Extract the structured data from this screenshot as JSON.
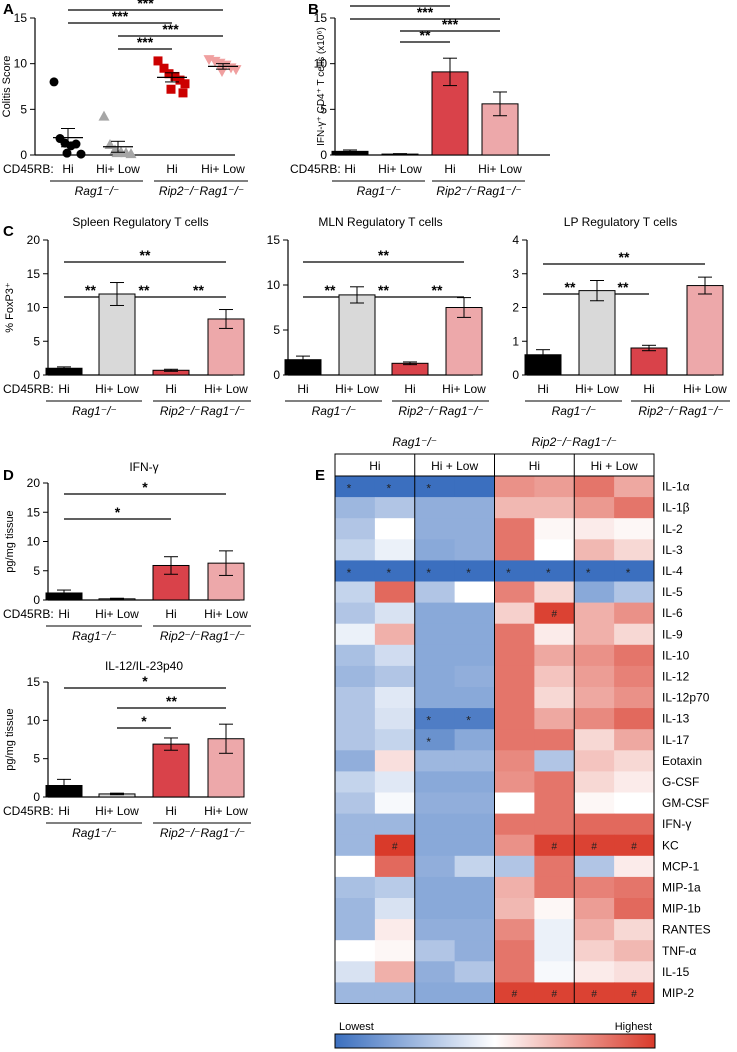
{
  "colors": {
    "black": "#000000",
    "gray": "#a6a6a6",
    "light_gray": "#d9d9d9",
    "red": "#d42a2a",
    "dark_red": "#cc0000",
    "pink": "#f0a0a0",
    "mid_red": "#d9424a",
    "light_pink": "#eda8aa",
    "blue_low": "#3b6fbf",
    "red_high": "#d93a2a"
  },
  "common": {
    "cd45rb": "CD45RB:",
    "hi": "Hi",
    "hi_low": "Hi+ Low",
    "rag1": "Rag1⁻/⁻",
    "rip2rag1": "Rip2⁻/⁻Rag1⁻/⁻",
    "sig3": "***",
    "sig2": "**",
    "sig1": "*"
  },
  "chart_data": [
    {
      "id": "A",
      "panel": "A",
      "type": "scatter",
      "ylabel": "Colitis Score",
      "ylim": [
        0,
        15
      ],
      "yticks": [
        "0",
        "5",
        "10",
        "15"
      ],
      "groups": [
        {
          "label": "Hi",
          "genotype": "Rag1",
          "mean": 1.9,
          "sem": 1.0,
          "color": "#000000",
          "marker": "circle",
          "points": [
            8.0,
            1.8,
            1.3,
            1.0,
            1.2,
            0.1,
            0.2
          ]
        },
        {
          "label": "Hi+ Low",
          "genotype": "Rag1",
          "mean": 0.9,
          "sem": 0.6,
          "color": "#a6a6a6",
          "marker": "triangle-up",
          "points": [
            4.2,
            1.1,
            0.5,
            0.3,
            0.2,
            0.1,
            0.2
          ]
        },
        {
          "label": "Hi",
          "genotype": "Rip2Rag1",
          "mean": 8.5,
          "sem": 0.5,
          "color": "#cc0000",
          "marker": "square",
          "points": [
            10.3,
            9.5,
            8.9,
            8.6,
            8.2,
            7.8,
            7.2,
            6.8
          ]
        },
        {
          "label": "Hi+ Low",
          "genotype": "Rip2Rag1",
          "mean": 9.7,
          "sem": 0.3,
          "color": "#f0a0a0",
          "marker": "triangle-down",
          "points": [
            10.5,
            10.3,
            10.1,
            9.9,
            9.6,
            9.4,
            9.2
          ]
        }
      ],
      "sig_bars": [
        {
          "from": 0,
          "to": 3,
          "label": "***"
        },
        {
          "from": 0,
          "to": 2,
          "label": "***"
        },
        {
          "from": 1,
          "to": 3,
          "label": "***"
        },
        {
          "from": 1,
          "to": 2,
          "label": "***"
        }
      ]
    },
    {
      "id": "B",
      "panel": "B",
      "type": "bar",
      "ylabel": "IFN-γ⁺ CD4⁺ T cells (x10⁶)",
      "ylim": [
        0,
        15
      ],
      "yticks": [
        "0",
        "5",
        "10",
        "15"
      ],
      "groups": [
        {
          "label": "Hi",
          "genotype": "Rag1",
          "value": 0.4,
          "err": 0.15,
          "color": "#000000"
        },
        {
          "label": "Hi+ Low",
          "genotype": "Rag1",
          "value": 0.1,
          "err": 0.05,
          "color": "#a6a6a6"
        },
        {
          "label": "Hi",
          "genotype": "Rip2Rag1",
          "value": 9.1,
          "err": 1.5,
          "color": "#d9424a"
        },
        {
          "label": "Hi+ Low",
          "genotype": "Rip2Rag1",
          "value": 5.6,
          "err": 1.3,
          "color": "#eda8aa"
        }
      ],
      "sig_bars": [
        {
          "from": 0,
          "to": 2,
          "label": "***"
        },
        {
          "from": 0,
          "to": 3,
          "label": "***"
        },
        {
          "from": 1,
          "to": 3,
          "label": "***"
        },
        {
          "from": 1,
          "to": 2,
          "label": "**"
        }
      ]
    },
    {
      "id": "C1",
      "panel": "C",
      "type": "bar",
      "title": "Spleen Regulatory T cells",
      "ylabel": "% FoxP3⁺",
      "ylim": [
        0,
        20
      ],
      "yticks": [
        "0",
        "5",
        "10",
        "15",
        "20"
      ],
      "groups": [
        {
          "label": "Hi",
          "genotype": "Rag1",
          "value": 1.0,
          "err": 0.2,
          "color": "#000000"
        },
        {
          "label": "Hi+ Low",
          "genotype": "Rag1",
          "value": 12.0,
          "err": 1.7,
          "color": "#d9d9d9"
        },
        {
          "label": "Hi",
          "genotype": "Rip2Rag1",
          "value": 0.7,
          "err": 0.15,
          "color": "#d9424a"
        },
        {
          "label": "Hi+ Low",
          "genotype": "Rip2Rag1",
          "value": 8.3,
          "err": 1.4,
          "color": "#eda8aa"
        }
      ],
      "sig_bars": [
        {
          "from": 0,
          "to": 3,
          "label": "**"
        },
        {
          "from": 0,
          "to": 1,
          "label": "**"
        },
        {
          "from": 1,
          "to": 2,
          "label": "**"
        },
        {
          "from": 2,
          "to": 3,
          "label": "**"
        }
      ]
    },
    {
      "id": "C2",
      "panel": "",
      "type": "bar",
      "title": "MLN Regulatory T cells",
      "ylabel": "",
      "ylim": [
        0,
        15
      ],
      "yticks": [
        "0",
        "5",
        "10",
        "15"
      ],
      "groups": [
        {
          "label": "Hi",
          "genotype": "Rag1",
          "value": 1.7,
          "err": 0.4,
          "color": "#000000"
        },
        {
          "label": "Hi+ Low",
          "genotype": "Rag1",
          "value": 8.9,
          "err": 0.9,
          "color": "#d9d9d9"
        },
        {
          "label": "Hi",
          "genotype": "Rip2Rag1",
          "value": 1.3,
          "err": 0.15,
          "color": "#d9424a"
        },
        {
          "label": "Hi+ Low",
          "genotype": "Rip2Rag1",
          "value": 7.5,
          "err": 1.1,
          "color": "#eda8aa"
        }
      ],
      "sig_bars": [
        {
          "from": 0,
          "to": 3,
          "label": "**"
        },
        {
          "from": 0,
          "to": 1,
          "label": "**"
        },
        {
          "from": 1,
          "to": 2,
          "label": "**"
        },
        {
          "from": 2,
          "to": 3,
          "label": "**"
        }
      ]
    },
    {
      "id": "C3",
      "panel": "",
      "type": "bar",
      "title": "LP Regulatory T cells",
      "ylabel": "",
      "ylim": [
        0,
        4
      ],
      "yticks": [
        "0",
        "1",
        "2",
        "3",
        "4"
      ],
      "groups": [
        {
          "label": "Hi",
          "genotype": "Rag1",
          "value": 0.6,
          "err": 0.15,
          "color": "#000000"
        },
        {
          "label": "Hi+ Low",
          "genotype": "Rag1",
          "value": 2.5,
          "err": 0.3,
          "color": "#d9d9d9"
        },
        {
          "label": "Hi",
          "genotype": "Rip2Rag1",
          "value": 0.8,
          "err": 0.08,
          "color": "#d9424a"
        },
        {
          "label": "Hi+ Low",
          "genotype": "Rip2Rag1",
          "value": 2.65,
          "err": 0.25,
          "color": "#eda8aa"
        }
      ],
      "sig_bars": [
        {
          "from": 0,
          "to": 3,
          "label": "**"
        },
        {
          "from": 0,
          "to": 1,
          "label": "**"
        },
        {
          "from": 1,
          "to": 2,
          "label": "**"
        }
      ]
    },
    {
      "id": "D1",
      "panel": "D",
      "type": "bar",
      "title": "IFN-γ",
      "ylabel": "pg/mg tissue",
      "ylim": [
        0,
        20
      ],
      "yticks": [
        "0",
        "5",
        "10",
        "15",
        "20"
      ],
      "groups": [
        {
          "label": "Hi",
          "genotype": "Rag1",
          "value": 1.2,
          "err": 0.5,
          "color": "#000000"
        },
        {
          "label": "Hi+ Low",
          "genotype": "Rag1",
          "value": 0.2,
          "err": 0.1,
          "color": "#d9d9d9"
        },
        {
          "label": "Hi",
          "genotype": "Rip2Rag1",
          "value": 5.9,
          "err": 1.5,
          "color": "#d9424a"
        },
        {
          "label": "Hi+ Low",
          "genotype": "Rip2Rag1",
          "value": 6.3,
          "err": 2.1,
          "color": "#eda8aa"
        }
      ],
      "sig_bars": [
        {
          "from": 0,
          "to": 3,
          "label": "*"
        },
        {
          "from": 0,
          "to": 2,
          "label": "*"
        }
      ]
    },
    {
      "id": "D2",
      "panel": "",
      "type": "bar",
      "title": "IL-12/IL-23p40",
      "ylabel": "pg/mg tissue",
      "ylim": [
        0,
        15
      ],
      "yticks": [
        "0",
        "5",
        "10",
        "15"
      ],
      "groups": [
        {
          "label": "Hi",
          "genotype": "Rag1",
          "value": 1.5,
          "err": 0.8,
          "color": "#000000"
        },
        {
          "label": "Hi+ Low",
          "genotype": "Rag1",
          "value": 0.4,
          "err": 0.1,
          "color": "#d9d9d9"
        },
        {
          "label": "Hi",
          "genotype": "Rip2Rag1",
          "value": 6.9,
          "err": 0.8,
          "color": "#d9424a"
        },
        {
          "label": "Hi+ Low",
          "genotype": "Rip2Rag1",
          "value": 7.6,
          "err": 1.9,
          "color": "#eda8aa"
        }
      ],
      "sig_bars": [
        {
          "from": 0,
          "to": 3,
          "label": "*"
        },
        {
          "from": 1,
          "to": 3,
          "label": "**"
        },
        {
          "from": 1,
          "to": 2,
          "label": "*"
        }
      ]
    },
    {
      "id": "E",
      "panel": "E",
      "type": "heatmap",
      "genotypes": [
        "Rag1⁻/⁻",
        "Rip2⁻/⁻Rag1⁻/⁻"
      ],
      "column_groups": [
        "Hi",
        "Hi + Low",
        "Hi",
        "Hi + Low"
      ],
      "rows": [
        "IL-1α",
        "IL-1β",
        "IL-2",
        "IL-3",
        "IL-4",
        "IL-5",
        "IL-6",
        "IL-9",
        "IL-10",
        "IL-12",
        "IL-12p70",
        "IL-13",
        "IL-17",
        "Eotaxin",
        "G-CSF",
        "GM-CSF",
        "IFN-γ",
        "KC",
        "MCP-1",
        "MIP-1a",
        "MIP-1b",
        "RANTES",
        "TNF-α",
        "IL-15",
        "MIP-2"
      ],
      "values": [
        [
          0.0,
          0.0,
          0.0,
          0.0,
          0.78,
          0.75,
          0.85,
          0.72
        ],
        [
          0.25,
          0.3,
          0.22,
          0.22,
          0.68,
          0.68,
          0.76,
          0.85
        ],
        [
          0.3,
          0.5,
          0.22,
          0.22,
          0.85,
          0.52,
          0.55,
          0.52
        ],
        [
          0.35,
          0.45,
          0.2,
          0.22,
          0.85,
          0.5,
          0.68,
          0.6
        ],
        [
          0.0,
          0.0,
          0.0,
          0.0,
          0.0,
          0.0,
          0.0,
          0.0
        ],
        [
          0.35,
          0.88,
          0.3,
          0.5,
          0.82,
          0.6,
          0.2,
          0.3
        ],
        [
          0.3,
          0.4,
          0.2,
          0.2,
          0.62,
          0.98,
          0.7,
          0.78
        ],
        [
          0.45,
          0.7,
          0.2,
          0.2,
          0.85,
          0.55,
          0.7,
          0.6
        ],
        [
          0.28,
          0.38,
          0.2,
          0.2,
          0.85,
          0.72,
          0.78,
          0.85
        ],
        [
          0.25,
          0.3,
          0.2,
          0.22,
          0.85,
          0.65,
          0.75,
          0.82
        ],
        [
          0.3,
          0.42,
          0.2,
          0.2,
          0.85,
          0.6,
          0.72,
          0.78
        ],
        [
          0.3,
          0.4,
          0.05,
          0.05,
          0.85,
          0.72,
          0.8,
          0.88
        ],
        [
          0.3,
          0.35,
          0.12,
          0.2,
          0.85,
          0.85,
          0.6,
          0.72
        ],
        [
          0.22,
          0.58,
          0.25,
          0.25,
          0.8,
          0.3,
          0.65,
          0.6
        ],
        [
          0.35,
          0.42,
          0.2,
          0.2,
          0.78,
          0.85,
          0.6,
          0.55
        ],
        [
          0.3,
          0.48,
          0.22,
          0.22,
          0.5,
          0.85,
          0.52,
          0.5
        ],
        [
          0.25,
          0.25,
          0.2,
          0.2,
          0.85,
          0.85,
          0.88,
          0.88
        ],
        [
          0.25,
          1.0,
          0.2,
          0.2,
          0.78,
          0.98,
          0.98,
          0.98
        ],
        [
          0.5,
          0.88,
          0.22,
          0.35,
          0.3,
          0.85,
          0.3,
          0.55
        ],
        [
          0.28,
          0.32,
          0.2,
          0.2,
          0.7,
          0.85,
          0.82,
          0.85
        ],
        [
          0.25,
          0.4,
          0.2,
          0.2,
          0.68,
          0.52,
          0.75,
          0.88
        ],
        [
          0.25,
          0.55,
          0.22,
          0.22,
          0.8,
          0.45,
          0.7,
          0.6
        ],
        [
          0.5,
          0.52,
          0.3,
          0.22,
          0.85,
          0.45,
          0.62,
          0.68
        ],
        [
          0.4,
          0.7,
          0.22,
          0.3,
          0.85,
          0.48,
          0.55,
          0.58
        ],
        [
          0.25,
          0.25,
          0.2,
          0.2,
          0.98,
          0.98,
          0.98,
          0.98
        ]
      ],
      "marks": [
        {
          "row": 0,
          "col": 0,
          "symbol": "*"
        },
        {
          "row": 0,
          "col": 1,
          "symbol": "*"
        },
        {
          "row": 0,
          "col": 2,
          "symbol": "*"
        },
        {
          "row": 4,
          "col": 0,
          "symbol": "*"
        },
        {
          "row": 4,
          "col": 1,
          "symbol": "*"
        },
        {
          "row": 4,
          "col": 2,
          "symbol": "*"
        },
        {
          "row": 4,
          "col": 3,
          "symbol": "*"
        },
        {
          "row": 4,
          "col": 4,
          "symbol": "*"
        },
        {
          "row": 4,
          "col": 5,
          "symbol": "*"
        },
        {
          "row": 4,
          "col": 6,
          "symbol": "*"
        },
        {
          "row": 4,
          "col": 7,
          "symbol": "*"
        },
        {
          "row": 6,
          "col": 5,
          "symbol": "#"
        },
        {
          "row": 11,
          "col": 2,
          "symbol": "*"
        },
        {
          "row": 11,
          "col": 3,
          "symbol": "*"
        },
        {
          "row": 12,
          "col": 2,
          "symbol": "*"
        },
        {
          "row": 17,
          "col": 1,
          "symbol": "#"
        },
        {
          "row": 17,
          "col": 5,
          "symbol": "#"
        },
        {
          "row": 17,
          "col": 6,
          "symbol": "#"
        },
        {
          "row": 17,
          "col": 7,
          "symbol": "#"
        },
        {
          "row": 24,
          "col": 4,
          "symbol": "#"
        },
        {
          "row": 24,
          "col": 5,
          "symbol": "#"
        },
        {
          "row": 24,
          "col": 6,
          "symbol": "#"
        },
        {
          "row": 24,
          "col": 7,
          "symbol": "#"
        }
      ],
      "scale_low": "Lowest",
      "scale_high": "Highest"
    }
  ]
}
